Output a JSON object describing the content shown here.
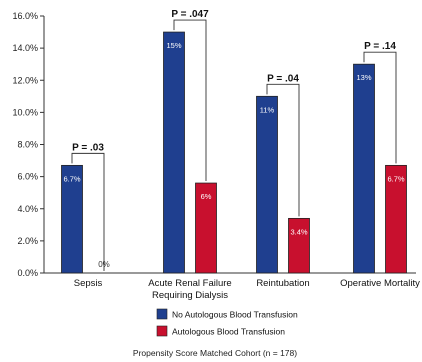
{
  "chart_data": {
    "type": "bar",
    "categories": [
      "Sepsis",
      "Acute Renal Failure\nRequiring Dialysis",
      "Reintubation",
      "Operative Mortality"
    ],
    "series": [
      {
        "name": "No Autologous Blood Transfusion",
        "color": "#1f3f8f",
        "values": [
          6.7,
          15,
          11,
          13
        ],
        "labels": [
          "6.7%",
          "15%",
          "11%",
          "13%"
        ]
      },
      {
        "name": "Autologous Blood Transfusion",
        "color": "#c8102e",
        "values": [
          0,
          5.6,
          3.4,
          6.7
        ],
        "labels": [
          "0%",
          "6%",
          "3.4%",
          "6.7%"
        ]
      }
    ],
    "p_values": [
      "P = .03",
      "P = .047",
      "P = .04",
      "P = .14"
    ],
    "yticks": [
      "0.0%",
      "2.0%",
      "4.0%",
      "6.0%",
      "8.0%",
      "10.0%",
      "12.0%",
      "14.0%",
      "16.0%"
    ],
    "ylim": [
      0,
      16
    ],
    "caption": "Propensity Score Matched Cohort (n = 178)",
    "legend_position": "bottom-center"
  }
}
